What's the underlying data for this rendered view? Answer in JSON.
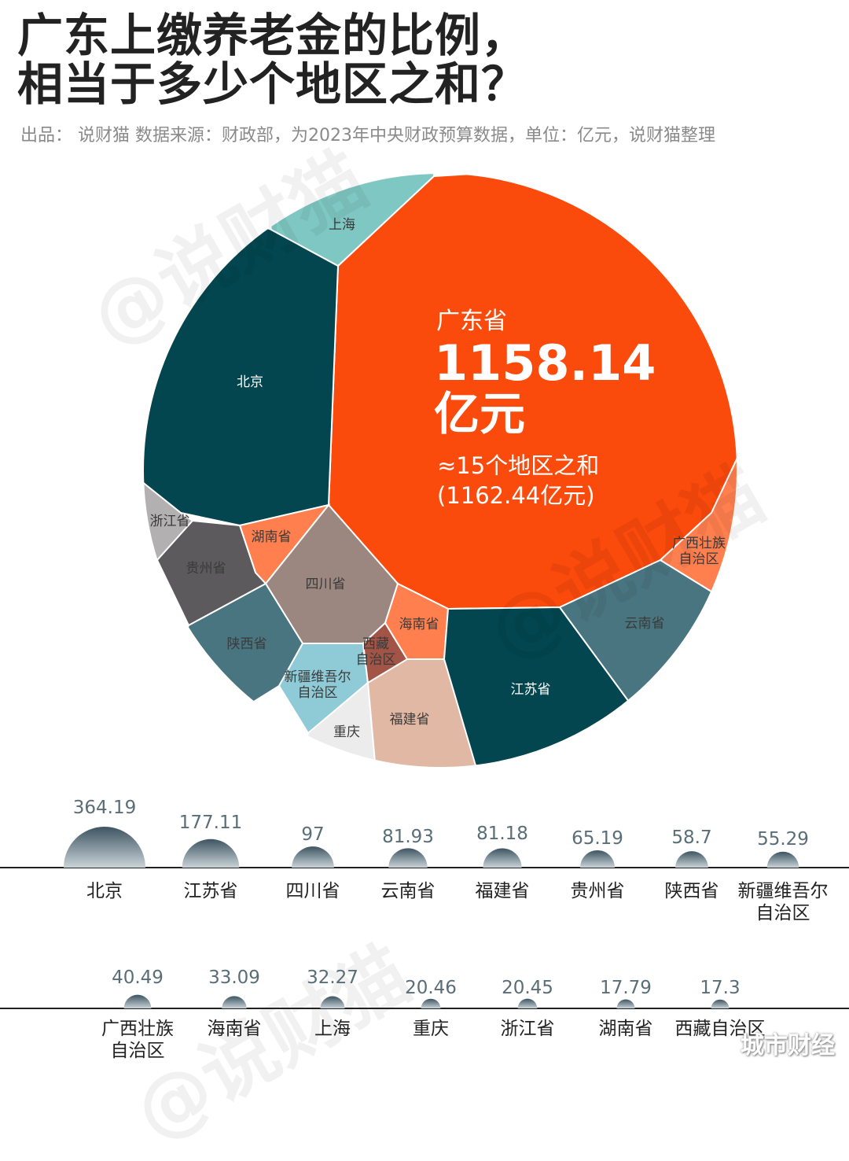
{
  "header": {
    "title_line1": "广东上缴养老金的比例，",
    "title_line2": "相当于多少个地区之和？",
    "subtitle": "出品：  说财猫    数据来源：财政部，为2023年中央财政预算数据，单位：亿元，说财猫整理"
  },
  "watermark_text": "@说财猫",
  "corner_tag": "城市财经",
  "callout": {
    "region": "广东省",
    "value": "1158.14",
    "unit": "亿元",
    "compare": "≈15个地区之和",
    "sum": "(1162.44亿元)"
  },
  "colors": {
    "guangdong": "#fa4a0c",
    "dark_teal": "#03464f",
    "teal_mid": "#497580",
    "light_teal": "#7fc7c3",
    "light_blue": "#8ecbd6",
    "orange_light": "#ff7f4f",
    "gray_dark": "#5c5a5c",
    "gray_mid": "#9b8680",
    "gray_light": "#b3b0b1",
    "very_light": "#ececec",
    "peach": "#e1b8a3",
    "brown_red": "#a25446",
    "bubble": "#5c6f78"
  },
  "chart_data": {
    "type": "voronoi-treemap-and-bubbles",
    "unit": "亿元",
    "main": {
      "name": "广东省",
      "value": 1158.14
    },
    "rows": [
      {
        "categories": [
          "北京",
          "江苏省",
          "四川省",
          "云南省",
          "福建省",
          "贵州省",
          "陕西省",
          "新疆维吾尔自治区"
        ],
        "value_labels": [
          "364.19",
          "177.11",
          "97",
          "81.93",
          "81.18",
          "65.19",
          "58.7",
          "55.29"
        ],
        "values": [
          364.19,
          177.11,
          97,
          81.93,
          81.18,
          65.19,
          58.7,
          55.29
        ]
      },
      {
        "categories": [
          "广西壮族自治区",
          "海南省",
          "上海",
          "重庆",
          "浙江省",
          "湖南省",
          "西藏自治区"
        ],
        "value_labels": [
          "40.49",
          "33.09",
          "32.27",
          "20.46",
          "20.45",
          "17.79",
          "17.3"
        ],
        "values": [
          40.49,
          33.09,
          32.27,
          20.46,
          20.45,
          17.79,
          17.3
        ]
      }
    ],
    "cells": [
      {
        "label": "北京",
        "color": "dark_teal",
        "dark_text": false
      },
      {
        "label": "上海",
        "color": "light_teal",
        "dark_text": true
      },
      {
        "label": "浙江省",
        "color": "gray_light",
        "dark_text": true
      },
      {
        "label": "湖南省",
        "color": "orange_light",
        "dark_text": true
      },
      {
        "label": "贵州省",
        "color": "gray_dark",
        "dark_text": true
      },
      {
        "label": "四川省",
        "color": "gray_mid",
        "dark_text": true
      },
      {
        "label": "陕西省",
        "color": "teal_mid",
        "dark_text": true
      },
      {
        "label": "新疆维吾尔自治区",
        "color": "light_blue",
        "dark_text": true
      },
      {
        "label": "重庆",
        "color": "very_light",
        "dark_text": true
      },
      {
        "label": "福建省",
        "color": "peach",
        "dark_text": true
      },
      {
        "label": "西藏自治区",
        "color": "brown_red",
        "dark_text": true
      },
      {
        "label": "海南省",
        "color": "orange_light",
        "dark_text": true
      },
      {
        "label": "江苏省",
        "color": "dark_teal",
        "dark_text": false
      },
      {
        "label": "云南省",
        "color": "teal_mid",
        "dark_text": true
      },
      {
        "label": "广西壮族自治区",
        "color": "orange_light",
        "dark_text": true
      }
    ]
  }
}
